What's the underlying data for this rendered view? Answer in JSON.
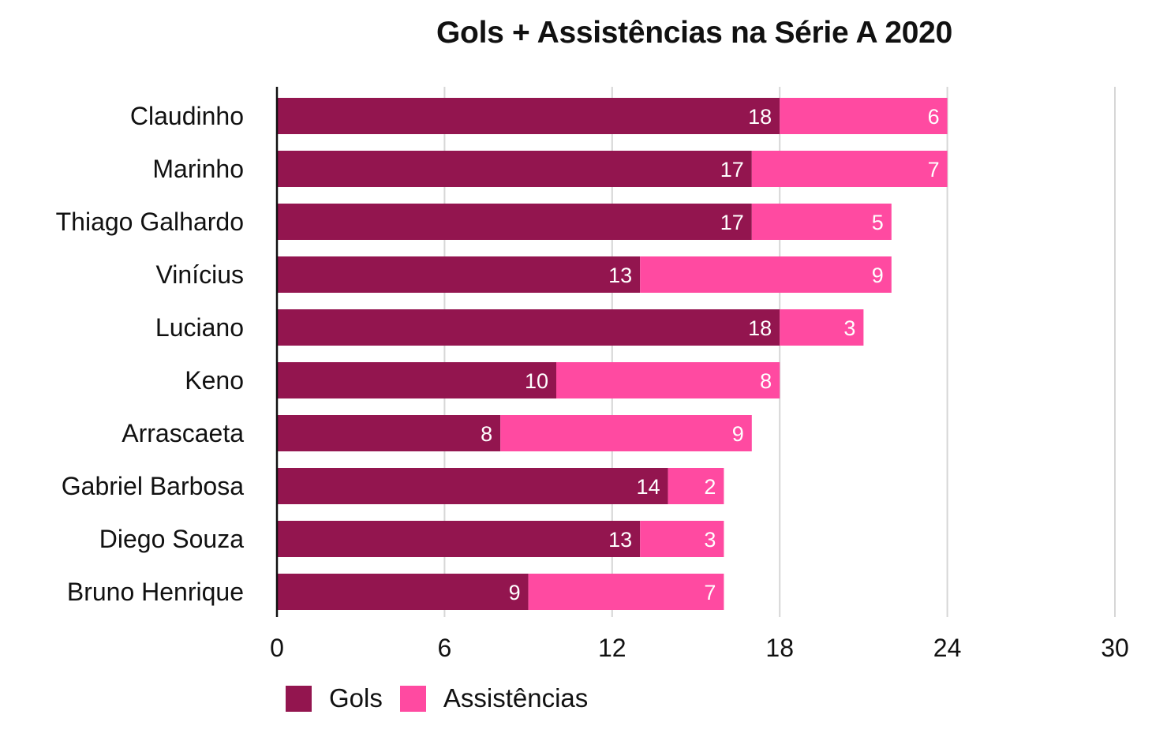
{
  "chart_data": {
    "type": "bar",
    "orientation": "horizontal",
    "stacked": true,
    "title": "Gols + Assistências na Série A 2020",
    "xlabel": "",
    "ylabel": "",
    "categories": [
      "Claudinho",
      "Marinho",
      "Thiago Galhardo",
      "Vinícius",
      "Luciano",
      "Keno",
      "Arrascaeta",
      "Gabriel Barbosa",
      "Diego Souza",
      "Bruno Henrique"
    ],
    "series": [
      {
        "name": "Gols",
        "color": "#93154F",
        "values": [
          18,
          17,
          17,
          13,
          18,
          10,
          8,
          14,
          13,
          9
        ]
      },
      {
        "name": "Assistências",
        "color": "#FF4AA1",
        "values": [
          6,
          7,
          5,
          9,
          3,
          8,
          9,
          2,
          3,
          7
        ]
      }
    ],
    "xlim": [
      0,
      30
    ],
    "xticks": [
      0,
      6,
      12,
      18,
      24,
      30
    ],
    "xtick_labels": [
      "0",
      "6",
      "12",
      "18",
      "24",
      "30"
    ],
    "grid": true,
    "data_labels": true,
    "legend_position": "bottom-left"
  },
  "legend": [
    {
      "label": "Gols",
      "color": "#93154F"
    },
    {
      "label": "Assistências",
      "color": "#FF4AA1"
    }
  ]
}
